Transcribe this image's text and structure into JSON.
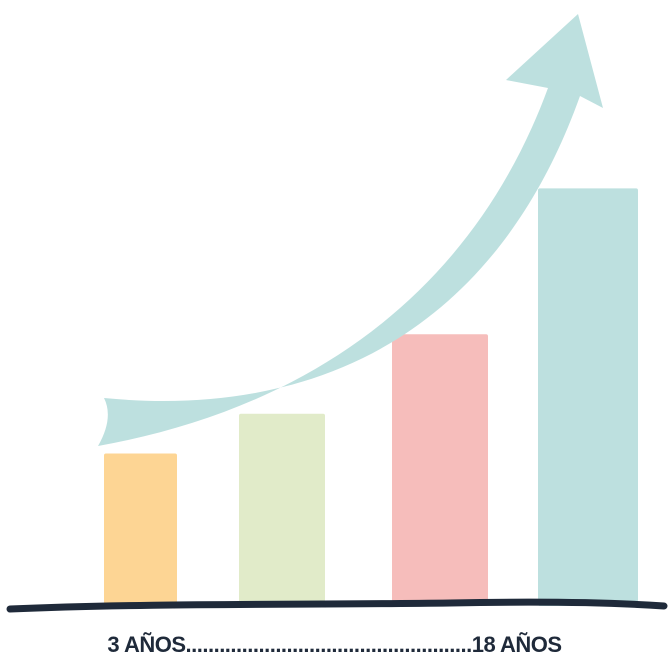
{
  "chart_data": {
    "type": "bar",
    "title": "",
    "xlabel": "",
    "ylabel": "",
    "categories": [
      "",
      "",
      "",
      ""
    ],
    "values": [
      2.3,
      2.9,
      4.1,
      6.3
    ],
    "ylim": [
      0,
      7
    ],
    "grid": false,
    "axis_start_label": "3 AÑOS",
    "axis_end_label": "18 AÑOS",
    "axis_label_separator": "...................................................",
    "trend_arrow": "increasing",
    "bar_colors": [
      "#fdd594",
      "#e1ebc9",
      "#f6bdbb",
      "#bde0df"
    ],
    "arrow_color": "#bde0df",
    "baseline_color": "#1f2a3a"
  }
}
